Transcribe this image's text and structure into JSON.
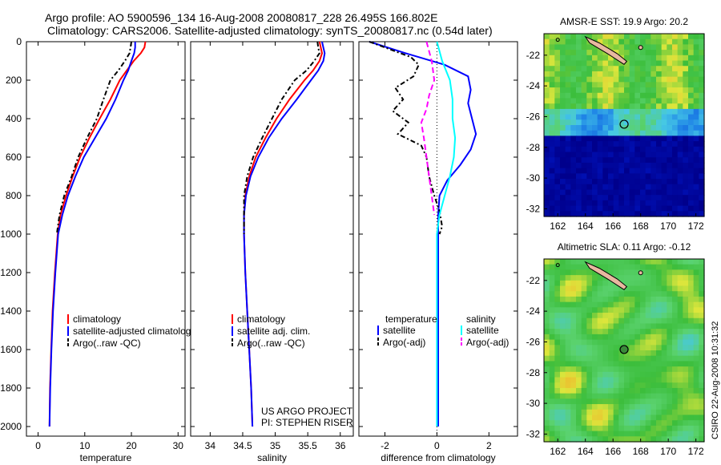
{
  "header": {
    "line1": "Argo profile: AO 5900596_134 16-Aug-2008 20080817_228 26.495S 166.802E",
    "line2": "Climatology: CARS2006. Satellite-adjusted climatology: synTS_20080817.nc (0.54d later)"
  },
  "colors": {
    "climatology": "#ff0000",
    "satellite": "#0000ff",
    "argo": "#000000",
    "salinity_satellite": "#00ffff",
    "salinity_argo": "#ff00ff"
  },
  "credit": {
    "line1": "US ARGO PROJECT",
    "line2": "PI: STEPHEN RISER"
  },
  "side_note": "CSIRO 22-Aug-2008 10:31:32",
  "legend_temp": [
    "climatology",
    "satellite-adjusted climatology",
    "Argo(..raw -QC)"
  ],
  "legend_sal": [
    "climatology",
    "satellite adj. clim.",
    "Argo(..raw -QC)"
  ],
  "legend_diff": {
    "temp_header": "temperature",
    "temp_sat": "satellite",
    "temp_argo": "Argo(-adj)",
    "sal_header": "salinity",
    "sal_sat": "satellite",
    "sal_argo": "Argo(-adj)"
  },
  "chart_data": [
    {
      "type": "line",
      "xlabel": "temperature",
      "ylabel": "",
      "xlim": [
        -2.5,
        31.5
      ],
      "ylim": [
        2050,
        0
      ],
      "xticks": [
        0,
        10,
        20,
        30
      ],
      "yticks": [
        0,
        200,
        400,
        600,
        800,
        1000,
        1200,
        1400,
        1600,
        1800,
        2000
      ],
      "series": [
        {
          "name": "climatology",
          "color": "#ff0000",
          "dash": "",
          "x": [
            23.0,
            22.8,
            22.0,
            20.5,
            19.0,
            17.5,
            15.5,
            13.2,
            11.0,
            9.0,
            7.4,
            6.0,
            4.8,
            4.2,
            3.6,
            3.1,
            2.8,
            2.55,
            2.45
          ],
          "y": [
            0,
            30,
            60,
            100,
            150,
            200,
            300,
            400,
            500,
            600,
            700,
            800,
            900,
            1000,
            1200,
            1400,
            1600,
            1800,
            2000
          ]
        },
        {
          "name": "satellite-adjusted climatology",
          "color": "#0000ff",
          "dash": "",
          "x": [
            20.8,
            20.8,
            20.6,
            20.0,
            19.3,
            18.3,
            16.6,
            14.6,
            12.2,
            9.8,
            8.0,
            6.4,
            5.2,
            4.3,
            3.7,
            3.2,
            2.85,
            2.6,
            2.45
          ],
          "y": [
            0,
            30,
            60,
            100,
            150,
            200,
            300,
            400,
            500,
            600,
            700,
            800,
            900,
            1000,
            1200,
            1400,
            1600,
            1800,
            2000
          ]
        },
        {
          "name": "Argo(..raw -QC)",
          "color": "#000000",
          "dash": "6,3,2,3",
          "x": [
            20.0,
            19.8,
            19.6,
            18.6,
            17.2,
            15.5,
            14.0,
            12.6,
            10.5,
            8.6,
            7.2,
            5.6,
            4.6,
            4.0
          ],
          "y": [
            0,
            30,
            60,
            100,
            150,
            200,
            300,
            400,
            500,
            600,
            700,
            800,
            900,
            1000
          ]
        }
      ]
    },
    {
      "type": "line",
      "xlabel": "salinity",
      "ylabel": "",
      "xlim": [
        33.7,
        36.2
      ],
      "ylim": [
        2050,
        0
      ],
      "xticks": [
        34,
        34.5,
        35,
        35.5,
        36
      ],
      "series": [
        {
          "name": "climatology",
          "color": "#ff0000",
          "dash": "",
          "x": [
            35.68,
            35.7,
            35.72,
            35.68,
            35.58,
            35.45,
            35.22,
            35.02,
            34.85,
            34.7,
            34.6,
            34.54,
            34.52,
            34.52,
            34.54,
            34.57,
            34.6,
            34.63,
            34.65
          ],
          "y": [
            0,
            30,
            60,
            100,
            150,
            200,
            300,
            400,
            500,
            600,
            700,
            800,
            900,
            1000,
            1200,
            1400,
            1600,
            1800,
            2000
          ]
        },
        {
          "name": "satellite adj. clim.",
          "color": "#0000ff",
          "dash": "",
          "x": [
            35.72,
            35.74,
            35.76,
            35.74,
            35.66,
            35.55,
            35.33,
            35.1,
            34.9,
            34.74,
            34.62,
            34.55,
            34.52,
            34.52,
            34.54,
            34.57,
            34.6,
            34.63,
            34.65
          ],
          "y": [
            0,
            30,
            60,
            100,
            150,
            200,
            300,
            400,
            500,
            600,
            700,
            800,
            900,
            1000,
            1200,
            1400,
            1600,
            1800,
            2000
          ]
        },
        {
          "name": "Argo(..raw -QC)",
          "color": "#000000",
          "dash": "6,3,2,3",
          "x": [
            35.65,
            35.66,
            35.68,
            35.6,
            35.48,
            35.3,
            35.1,
            34.95,
            34.8,
            34.66,
            34.57,
            34.52,
            34.52,
            34.52
          ],
          "y": [
            0,
            30,
            60,
            100,
            150,
            200,
            300,
            400,
            500,
            600,
            700,
            800,
            900,
            1000
          ]
        }
      ]
    },
    {
      "type": "line",
      "xlabel": "difference from climatology",
      "ylabel": "",
      "xlim": [
        -3,
        3.1
      ],
      "ylim": [
        2050,
        0
      ],
      "xticks": [
        -2,
        0,
        2
      ],
      "series": [
        {
          "name": "temperature satellite",
          "color": "#0000ff",
          "dash": "",
          "x": [
            -2.6,
            -1.2,
            0.3,
            1.2,
            1.3,
            1.2,
            1.35,
            1.5,
            1.3,
            0.9,
            0.4,
            0.1,
            0.05,
            0.05,
            0.05,
            0.05,
            0.05
          ],
          "y": [
            0,
            60,
            120,
            180,
            250,
            320,
            400,
            480,
            560,
            640,
            720,
            800,
            900,
            1000,
            1400,
            1800,
            2000
          ]
        },
        {
          "name": "temperature Argo(-adj)",
          "color": "#000000",
          "dash": "6,3,2,3",
          "x": [
            -2.6,
            -1.8,
            -1.0,
            -0.7,
            -0.9,
            -1.6,
            -1.3,
            -1.7,
            -1.1,
            -1.5,
            -0.6,
            -0.4,
            -0.3,
            -0.1,
            0.1,
            0.2,
            0.1
          ],
          "y": [
            0,
            40,
            80,
            120,
            180,
            240,
            300,
            360,
            420,
            480,
            540,
            600,
            700,
            800,
            880,
            960,
            1000
          ]
        },
        {
          "name": "salinity satellite",
          "color": "#00ffff",
          "dash": "",
          "x": [
            0.0,
            0.2,
            0.5,
            0.6,
            0.6,
            0.7,
            0.65,
            0.5,
            0.3,
            0.1,
            0.0,
            0.0,
            0.0,
            0.0,
            0.0
          ],
          "y": [
            0,
            100,
            200,
            300,
            400,
            500,
            600,
            700,
            800,
            900,
            1000,
            1200,
            1400,
            1800,
            2000
          ]
        },
        {
          "name": "salinity Argo(-adj)",
          "color": "#ff00ff",
          "dash": "7,4",
          "x": [
            -0.4,
            -0.2,
            -0.1,
            -0.3,
            -0.4,
            -0.6,
            -0.5,
            -0.4,
            -0.3,
            -0.2,
            -0.1
          ],
          "y": [
            0,
            100,
            200,
            280,
            350,
            420,
            500,
            600,
            700,
            800,
            900
          ]
        }
      ]
    },
    {
      "type": "heatmap",
      "title": "AMSR-E SST: 19.9  Argo: 20.2",
      "xticks": [
        162,
        164,
        166,
        168,
        170,
        172
      ],
      "yticks": [
        -22,
        -24,
        -26,
        -28,
        -30,
        -32
      ],
      "xlim": [
        161,
        172.6
      ],
      "ylim": [
        -32.5,
        -20.6
      ],
      "marker": {
        "lon": 166.802,
        "lat": -26.495
      }
    },
    {
      "type": "heatmap",
      "title": "Altimetric SLA: 0.11  Argo: -0.12",
      "xticks": [
        162,
        164,
        166,
        168,
        170,
        172
      ],
      "yticks": [
        -22,
        -24,
        -26,
        -28,
        -30,
        -32
      ],
      "xlim": [
        161,
        172.6
      ],
      "ylim": [
        -32.5,
        -20.6
      ],
      "marker": {
        "lon": 166.802,
        "lat": -26.495
      }
    }
  ]
}
